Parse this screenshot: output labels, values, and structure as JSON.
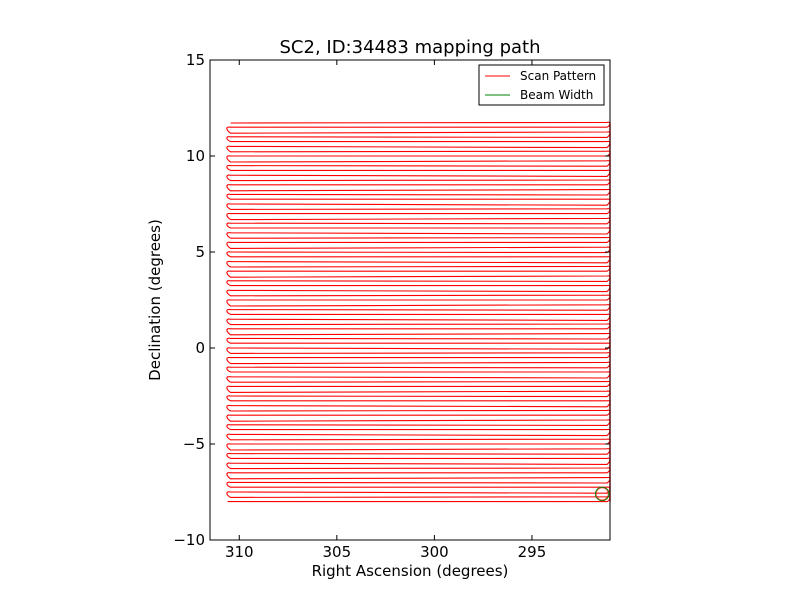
{
  "chart_data": {
    "type": "line",
    "title": "SC2, ID:34483 mapping path",
    "xlabel": "Right Ascension (degrees)",
    "ylabel": "Declination (degrees)",
    "xlim": [
      311.5,
      291.0
    ],
    "ylim": [
      -10,
      15
    ],
    "xticks": [
      310,
      305,
      300,
      295
    ],
    "yticks": [
      -10,
      -5,
      0,
      5,
      10,
      15
    ],
    "xtick_labels": [
      "310",
      "305",
      "300",
      "295"
    ],
    "ytick_labels": [
      "−10",
      "−5",
      "0",
      "5",
      "10",
      "15"
    ],
    "grid": false,
    "legend_position": "top-right",
    "series": [
      {
        "name": "Scan Pattern",
        "color": "#ff0000",
        "pattern": "raster",
        "ra_range": [
          310.6,
          291.0
        ],
        "dec_start": -8.0,
        "dec_end": 11.75,
        "dec_step": 0.25
      },
      {
        "name": "Beam Width",
        "color": "#008000",
        "shape": "circle",
        "center_ra": 291.4,
        "center_dec": -7.6,
        "radius_deg": 0.35
      }
    ]
  }
}
